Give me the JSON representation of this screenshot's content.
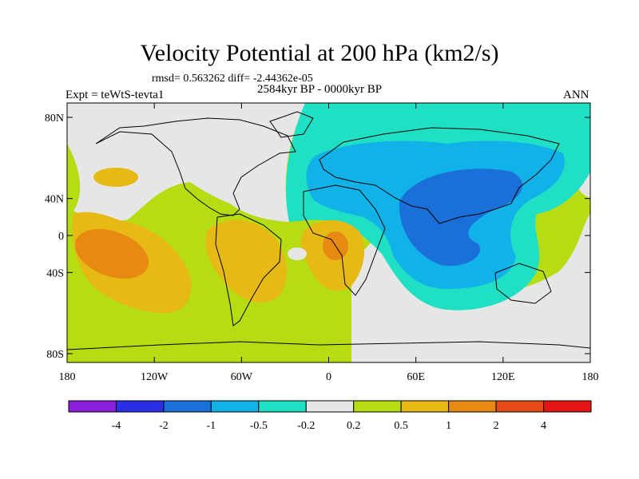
{
  "title": "Velocity Potential at 200 hPa (km2/s)",
  "stats": "rmsd= 0.563262 diff= -2.44362e-05",
  "experiment": "Expt = teWtS-tevta1",
  "period": "2584kyr BP - 0000kyr BP",
  "season": "ANN",
  "axes": {
    "y_ticks": [
      {
        "label": "80N",
        "lat": 80
      },
      {
        "label": "40N",
        "lat": 40
      },
      {
        "label": "0",
        "lat": 0
      },
      {
        "label": "40S",
        "lat": -40
      },
      {
        "label": "80S",
        "lat": -80
      }
    ],
    "x_ticks": [
      {
        "label": "180",
        "lon": -180
      },
      {
        "label": "120W",
        "lon": -120
      },
      {
        "label": "60W",
        "lon": -60
      },
      {
        "label": "0",
        "lon": 0
      },
      {
        "label": "60E",
        "lon": 60
      },
      {
        "label": "120E",
        "lon": 120
      },
      {
        "label": "180",
        "lon": 180
      }
    ]
  },
  "colorbar": {
    "colors": [
      "#8c1fdc",
      "#2a2ee6",
      "#1b6fd8",
      "#10b2e8",
      "#1fe0c4",
      "#e6e6e6",
      "#b6dc14",
      "#e6b914",
      "#e68a14",
      "#e64a14",
      "#e61414"
    ],
    "labels": [
      "-4",
      "-2",
      "-1",
      "-0.5",
      "-0.2",
      "0.2",
      "0.5",
      "1",
      "2",
      "4"
    ]
  }
}
